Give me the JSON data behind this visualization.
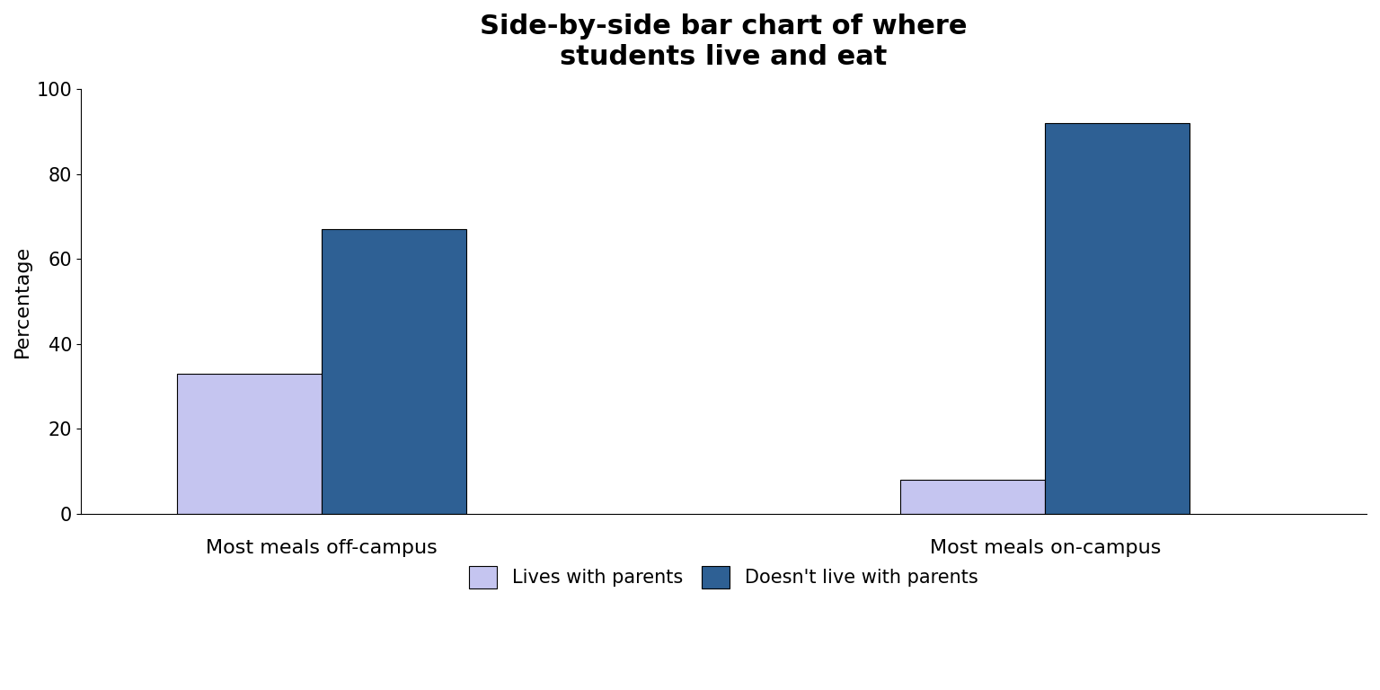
{
  "title": "Side-by-side bar chart of where\nstudents live and eat",
  "ylabel": "Percentage",
  "ylim": [
    0,
    100
  ],
  "yticks": [
    0,
    20,
    40,
    60,
    80,
    100
  ],
  "groups": [
    "Most meals off-campus",
    "Most meals on-campus"
  ],
  "series": {
    "Lives with parents": {
      "values": [
        33,
        8
      ],
      "color": "#c5c5f0"
    },
    "Doesn't live with parents": {
      "values": [
        67,
        92
      ],
      "color": "#2e6094"
    }
  },
  "bar_width": 0.9,
  "group_centers": [
    2.0,
    6.5
  ],
  "background_color": "#ffffff",
  "title_fontsize": 22,
  "label_fontsize": 16,
  "tick_fontsize": 15,
  "legend_fontsize": 15,
  "xlim": [
    0.5,
    8.5
  ]
}
